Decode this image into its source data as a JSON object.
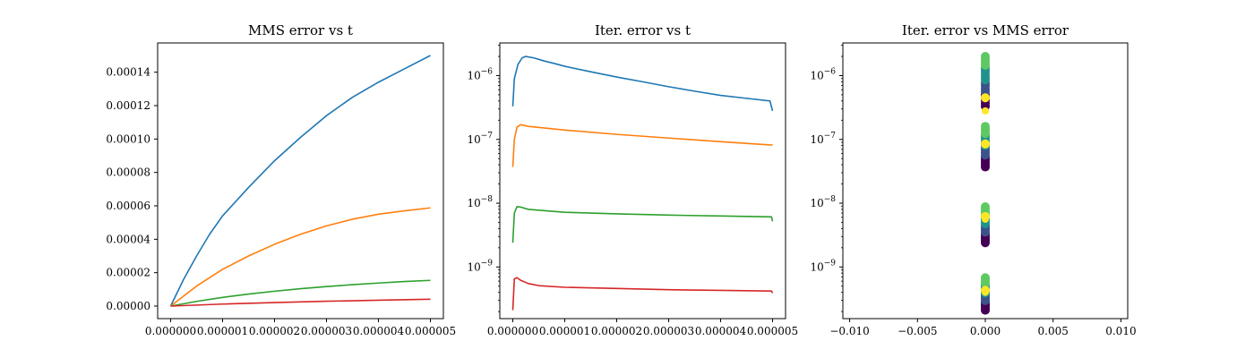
{
  "chart_data": [
    {
      "type": "line",
      "title": "MMS error vs t",
      "xlabel": "",
      "ylabel": "",
      "xlim": [
        -2.5e-07,
        5.25e-06
      ],
      "ylim": [
        -7.5e-06,
        0.0001575
      ],
      "yscale": "linear",
      "x_ticks": [
        0,
        1e-06,
        2e-06,
        3e-06,
        4e-06,
        5e-06
      ],
      "x_tick_labels": [
        "0.000000",
        "0.000001",
        "0.000002",
        "0.000003",
        "0.000004",
        "0.000005"
      ],
      "y_ticks": [
        0,
        2e-05,
        4e-05,
        6e-05,
        8e-05,
        0.0001,
        0.00012,
        0.00014
      ],
      "y_tick_labels": [
        "0.00000",
        "0.00002",
        "0.00004",
        "0.00006",
        "0.00008",
        "0.00010",
        "0.00012",
        "0.00014"
      ],
      "grid": false,
      "series": [
        {
          "color": "#1f77b4",
          "x": [
            0,
            2.5e-07,
            5e-07,
            7.5e-07,
            1e-06,
            1.5e-06,
            2e-06,
            2.5e-06,
            3e-06,
            3.5e-06,
            4e-06,
            4.5e-06,
            5e-06
          ],
          "values": [
            0,
            1.6e-05,
            3e-05,
            4.3e-05,
            5.4e-05,
            7.1e-05,
            8.7e-05,
            0.000101,
            0.000114,
            0.000125,
            0.000134,
            0.000142,
            0.00015
          ]
        },
        {
          "color": "#ff7f0e",
          "x": [
            0,
            5e-07,
            1e-06,
            1.5e-06,
            2e-06,
            2.5e-06,
            3e-06,
            3.5e-06,
            4e-06,
            4.5e-06,
            5e-06
          ],
          "values": [
            0,
            1.2e-05,
            2.2e-05,
            3e-05,
            3.7e-05,
            4.3e-05,
            4.8e-05,
            5.2e-05,
            5.5e-05,
            5.7e-05,
            5.88e-05
          ]
        },
        {
          "color": "#2ca02c",
          "x": [
            0,
            5e-07,
            1e-06,
            1.5e-06,
            2e-06,
            2.5e-06,
            3e-06,
            3.5e-06,
            4e-06,
            4.5e-06,
            5e-06
          ],
          "values": [
            0,
            2.8e-06,
            5.2e-06,
            7.2e-06,
            8.9e-06,
            1.04e-05,
            1.17e-05,
            1.28e-05,
            1.38e-05,
            1.47e-05,
            1.54e-05
          ]
        },
        {
          "color": "#d62728",
          "x": [
            0,
            1e-06,
            2e-06,
            3e-06,
            4e-06,
            5e-06
          ],
          "values": [
            0,
            1.2e-06,
            2.1e-06,
            2.9e-06,
            3.5e-06,
            4.1e-06
          ]
        }
      ]
    },
    {
      "type": "line",
      "title": "Iter. error vs t",
      "xlabel": "",
      "ylabel": "",
      "xlim": [
        -2.5e-07,
        5.25e-06
      ],
      "ylim": [
        1.55e-10,
        3.25e-06
      ],
      "yscale": "log",
      "x_ticks": [
        0,
        1e-06,
        2e-06,
        3e-06,
        4e-06,
        5e-06
      ],
      "x_tick_labels": [
        "0.000000",
        "0.000001",
        "0.000002",
        "0.000003",
        "0.000004",
        "0.000005"
      ],
      "y_ticks": [
        1e-09,
        1e-08,
        1e-07,
        1e-06
      ],
      "y_tick_bases": [
        "10",
        "10",
        "10",
        "10"
      ],
      "y_tick_exponents": [
        "−9",
        "−8",
        "−7",
        "−6"
      ],
      "grid": false,
      "series": [
        {
          "color": "#1f77b4",
          "x": [
            0,
            3e-08,
            1e-07,
            1.8e-07,
            2.5e-07,
            4e-07,
            6e-07,
            8e-07,
            1e-06,
            1.5e-06,
            2e-06,
            2.5e-06,
            3e-06,
            3.5e-06,
            4e-06,
            4.5e-06,
            4.95e-06,
            5e-06
          ],
          "values": [
            3.3e-07,
            9e-07,
            1.5e-06,
            1.9e-06,
            2e-06,
            1.9e-06,
            1.7e-06,
            1.55e-06,
            1.4e-06,
            1.15e-06,
            9.5e-07,
            8e-07,
            6.7e-07,
            5.7e-07,
            4.9e-07,
            4.4e-07,
            4e-07,
            2.8e-07
          ]
        },
        {
          "color": "#ff7f0e",
          "x": [
            0,
            3e-08,
            8e-08,
            1.5e-07,
            3e-07,
            1e-06,
            2e-06,
            3e-06,
            4e-06,
            4.95e-06,
            5e-06
          ],
          "values": [
            3.7e-08,
            1e-07,
            1.55e-07,
            1.7e-07,
            1.6e-07,
            1.4e-07,
            1.2e-07,
            1.05e-07,
            9.2e-08,
            8.2e-08,
            8.2e-08
          ]
        },
        {
          "color": "#2ca02c",
          "x": [
            0,
            3e-08,
            8e-08,
            1.5e-07,
            3e-07,
            1e-06,
            2e-06,
            3e-06,
            4e-06,
            4.98e-06,
            5e-06
          ],
          "values": [
            2.4e-09,
            7e-09,
            8.8e-09,
            8.7e-09,
            8e-09,
            7.2e-09,
            6.8e-09,
            6.5e-09,
            6.3e-09,
            6.1e-09,
            5.2e-09
          ]
        },
        {
          "color": "#d62728",
          "x": [
            0,
            3e-08,
            8e-08,
            1.5e-07,
            3e-07,
            5e-07,
            1e-06,
            2e-06,
            3e-06,
            4e-06,
            4.98e-06,
            5e-06
          ],
          "values": [
            2.1e-10,
            6.5e-10,
            6.8e-10,
            6.2e-10,
            5.5e-10,
            5.1e-10,
            4.8e-10,
            4.6e-10,
            4.4e-10,
            4.3e-10,
            4.2e-10,
            3.9e-10
          ]
        }
      ]
    },
    {
      "type": "scatter",
      "title": "Iter. error vs MMS error",
      "xlabel": "",
      "ylabel": "",
      "xlim": [
        -0.0105,
        0.0105
      ],
      "ylim": [
        1.55e-10,
        3.25e-06
      ],
      "yscale": "log",
      "x_ticks": [
        -0.01,
        -0.005,
        0,
        0.005,
        0.01
      ],
      "x_tick_labels": [
        "−0.010",
        "−0.005",
        "0.000",
        "0.005",
        "0.010"
      ],
      "y_ticks": [
        1e-09,
        1e-08,
        1e-07,
        1e-06
      ],
      "y_tick_bases": [
        "10",
        "10",
        "10",
        "10"
      ],
      "y_tick_exponents": [
        "−9",
        "−8",
        "−7",
        "−6"
      ],
      "grid": false,
      "colormap": [
        "#440154",
        "#3b528b",
        "#21918c",
        "#5ec962",
        "#fde725"
      ],
      "clusters": [
        {
          "x": 0,
          "y_min": 3.3e-07,
          "y_max": 2e-06,
          "y_end": 4.5e-07,
          "y_last": 2.8e-07
        },
        {
          "x": 0,
          "y_min": 3.7e-08,
          "y_max": 1.6e-07,
          "y_end": 8.5e-08,
          "y_last": 8.2e-08
        },
        {
          "x": 0,
          "y_min": 2.4e-09,
          "y_max": 8.8e-09,
          "y_end": 6.2e-09,
          "y_last": 5.6e-09
        },
        {
          "x": 0,
          "y_min": 2.1e-10,
          "y_max": 6.8e-10,
          "y_end": 4.3e-10,
          "y_last": 4e-10
        }
      ]
    }
  ]
}
